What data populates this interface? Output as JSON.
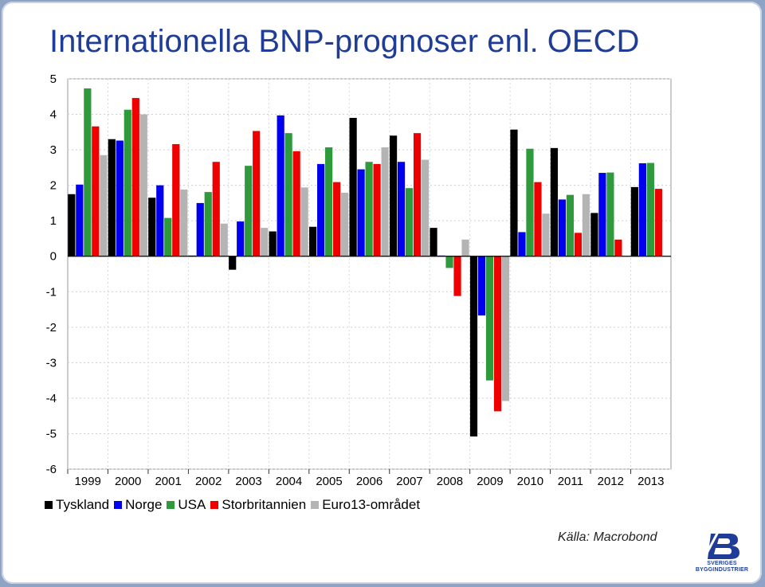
{
  "title": "Internationella BNP-prognoser enl. OECD",
  "source": "Källa: Macrobond",
  "logo": {
    "line1": "SVERIGES",
    "line2": "BYGGINDUSTRIER",
    "mark": "B"
  },
  "chart_data": {
    "type": "bar",
    "title": "",
    "xlabel": "",
    "ylabel": "",
    "ylim": [
      -6,
      5
    ],
    "yticks": [
      5,
      4,
      3,
      2,
      1,
      0,
      -1,
      -2,
      -3,
      -4,
      -5,
      -6
    ],
    "grid": true,
    "legend_position": "bottom-left",
    "categories": [
      "1999",
      "2000",
      "2001",
      "2002",
      "2003",
      "2004",
      "2005",
      "2006",
      "2007",
      "2008",
      "2009",
      "2010",
      "2011",
      "2012",
      "2013"
    ],
    "series": [
      {
        "name": "Tyskland",
        "color": "#000000",
        "values": [
          1.75,
          3.3,
          1.65,
          0.02,
          -0.38,
          0.7,
          0.83,
          3.9,
          3.4,
          0.8,
          -5.08,
          3.57,
          3.05,
          1.22,
          1.95
        ]
      },
      {
        "name": "Norge",
        "color": "#0000ee",
        "values": [
          2.02,
          3.26,
          2.0,
          1.5,
          0.98,
          3.97,
          2.6,
          2.45,
          2.66,
          0.02,
          -1.67,
          0.68,
          1.6,
          2.35,
          2.62
        ]
      },
      {
        "name": "USA",
        "color": "#2e9a3c",
        "values": [
          4.73,
          4.13,
          1.08,
          1.81,
          2.55,
          3.47,
          3.07,
          2.66,
          1.92,
          -0.33,
          -3.5,
          3.03,
          1.73,
          2.36,
          2.63
        ]
      },
      {
        "name": "Storbritannien",
        "color": "#ee0000",
        "values": [
          3.66,
          4.46,
          3.16,
          2.66,
          3.53,
          2.96,
          2.09,
          2.6,
          3.47,
          -1.12,
          -4.37,
          2.09,
          0.66,
          0.47,
          1.9
        ]
      },
      {
        "name": "Euro13-området",
        "color": "#b4b4b4",
        "values": [
          2.85,
          4.0,
          1.88,
          0.92,
          0.8,
          1.94,
          1.79,
          3.07,
          2.72,
          0.47,
          -4.08,
          1.2,
          1.75,
          null,
          null
        ]
      }
    ]
  }
}
